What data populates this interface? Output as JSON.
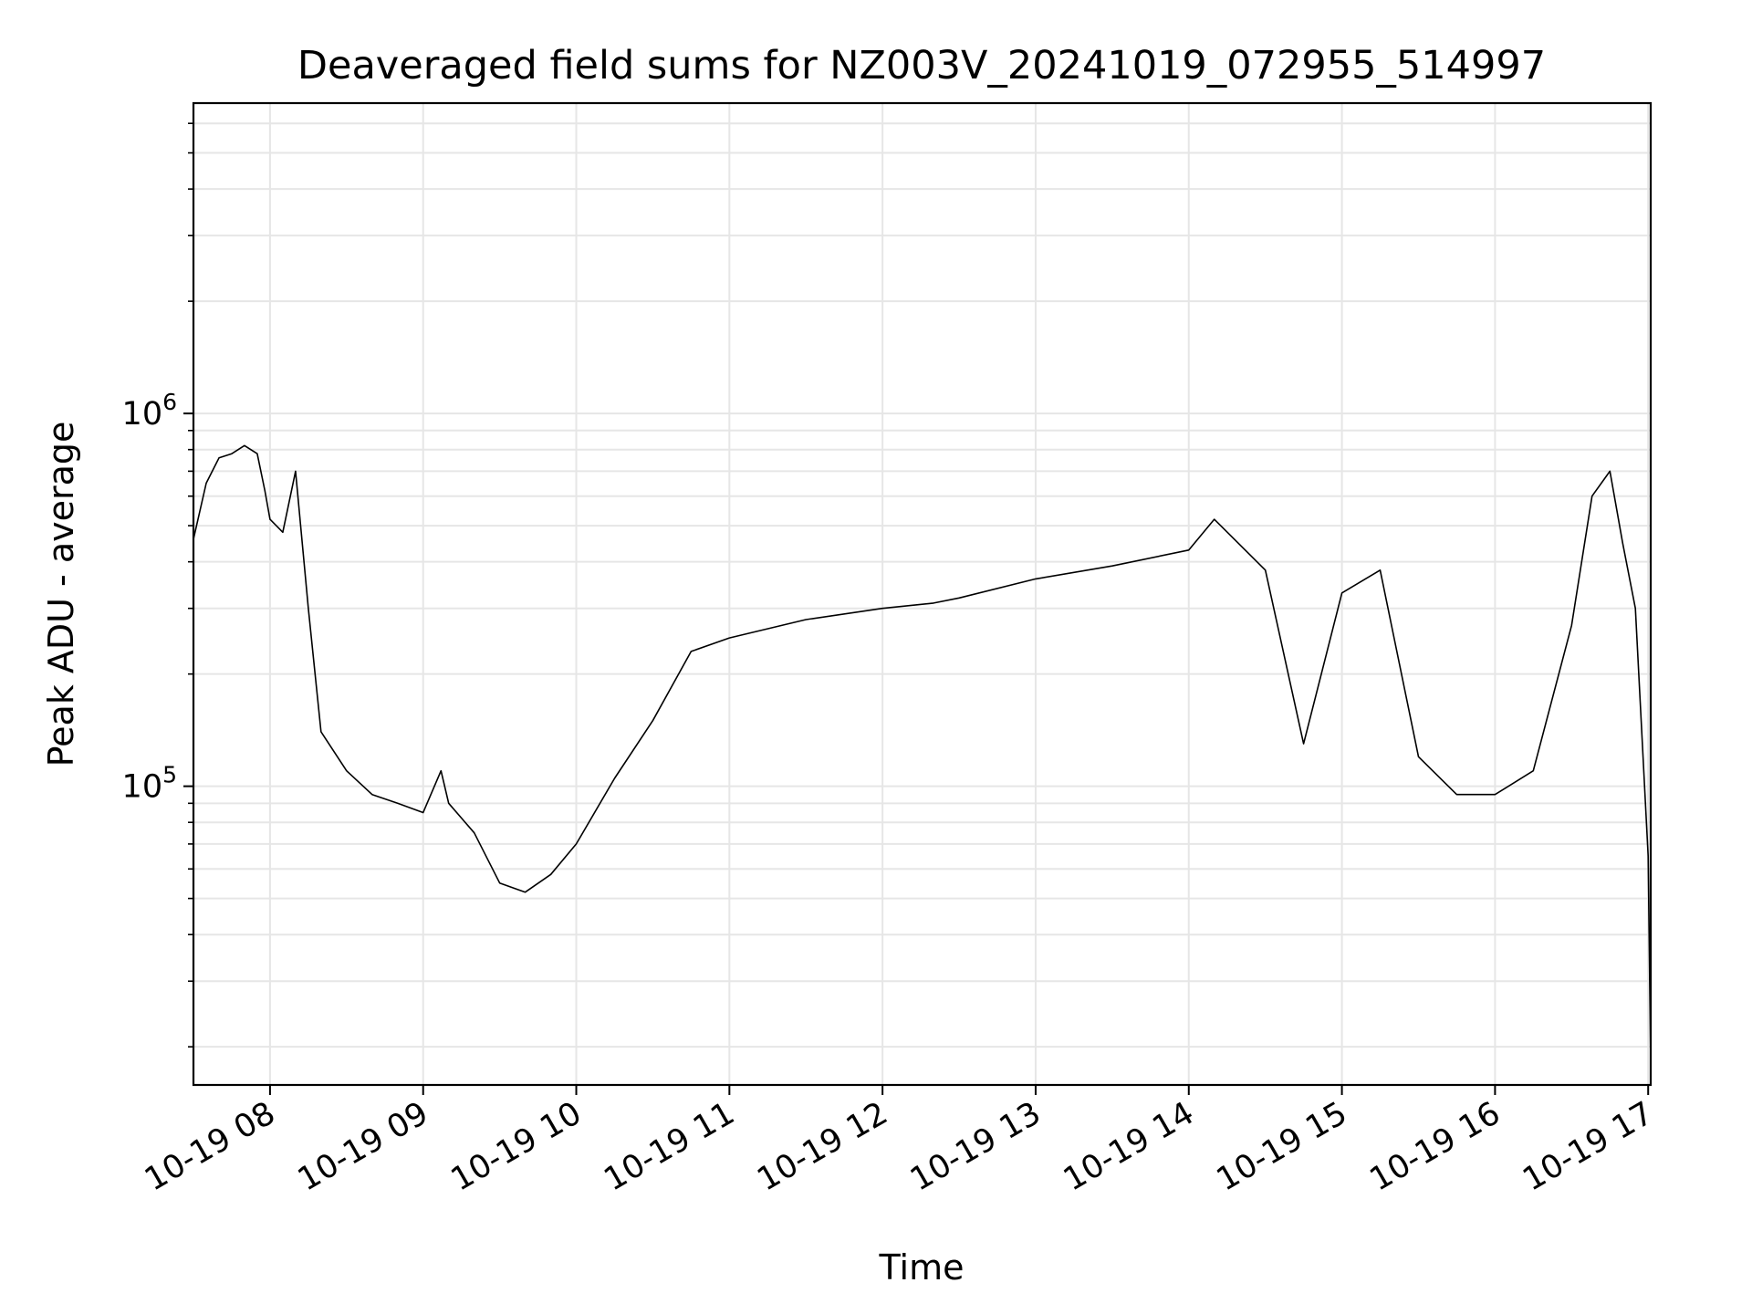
{
  "chart_data": {
    "type": "line",
    "title": "Deaveraged field sums for NZ003V_20241019_072955_514997",
    "xlabel": "Time",
    "ylabel": "Peak ADU - average",
    "y_scale": "log",
    "x_ticks": [
      "10-19 08",
      "10-19 09",
      "10-19 10",
      "10-19 11",
      "10-19 12",
      "10-19 13",
      "10-19 14",
      "10-19 15",
      "10-19 16",
      "10-19 17"
    ],
    "y_ticks": [
      "10^5",
      "10^6"
    ],
    "xlim": [
      "2024-10-19 07:30",
      "2024-10-19 17:01"
    ],
    "ylim": [
      15800,
      6800000
    ],
    "grid": true,
    "legend": "none",
    "line_color": "#000000",
    "series": [
      {
        "x": [
          "2024-10-19 07:30",
          "2024-10-19 07:35",
          "2024-10-19 07:40",
          "2024-10-19 07:45",
          "2024-10-19 07:50",
          "2024-10-19 07:55",
          "2024-10-19 07:58",
          "2024-10-19 08:00",
          "2024-10-19 08:05",
          "2024-10-19 08:10",
          "2024-10-19 08:15",
          "2024-10-19 08:20",
          "2024-10-19 08:30",
          "2024-10-19 08:40",
          "2024-10-19 08:50",
          "2024-10-19 09:00",
          "2024-10-19 09:07",
          "2024-10-19 09:10",
          "2024-10-19 09:20",
          "2024-10-19 09:30",
          "2024-10-19 09:40",
          "2024-10-19 09:50",
          "2024-10-19 10:00",
          "2024-10-19 10:15",
          "2024-10-19 10:30",
          "2024-10-19 10:45",
          "2024-10-19 11:00",
          "2024-10-19 11:30",
          "2024-10-19 12:00",
          "2024-10-19 12:20",
          "2024-10-19 12:30",
          "2024-10-19 13:00",
          "2024-10-19 13:30",
          "2024-10-19 14:00",
          "2024-10-19 14:10",
          "2024-10-19 14:30",
          "2024-10-19 14:45",
          "2024-10-19 15:00",
          "2024-10-19 15:15",
          "2024-10-19 15:30",
          "2024-10-19 15:45",
          "2024-10-19 16:00",
          "2024-10-19 16:15",
          "2024-10-19 16:30",
          "2024-10-19 16:38",
          "2024-10-19 16:45",
          "2024-10-19 16:50",
          "2024-10-19 16:55",
          "2024-10-19 17:00",
          "2024-10-19 17:01"
        ],
        "y": [
          460000,
          650000,
          760000,
          780000,
          820000,
          780000,
          620000,
          520000,
          480000,
          700000,
          300000,
          140000,
          110000,
          95000,
          90000,
          85000,
          110000,
          90000,
          75000,
          55000,
          52000,
          58000,
          70000,
          105000,
          150000,
          230000,
          250000,
          280000,
          300000,
          310000,
          320000,
          360000,
          390000,
          430000,
          520000,
          380000,
          130000,
          330000,
          380000,
          120000,
          95000,
          95000,
          110000,
          270000,
          600000,
          700000,
          450000,
          300000,
          65000,
          18000
        ]
      }
    ]
  }
}
